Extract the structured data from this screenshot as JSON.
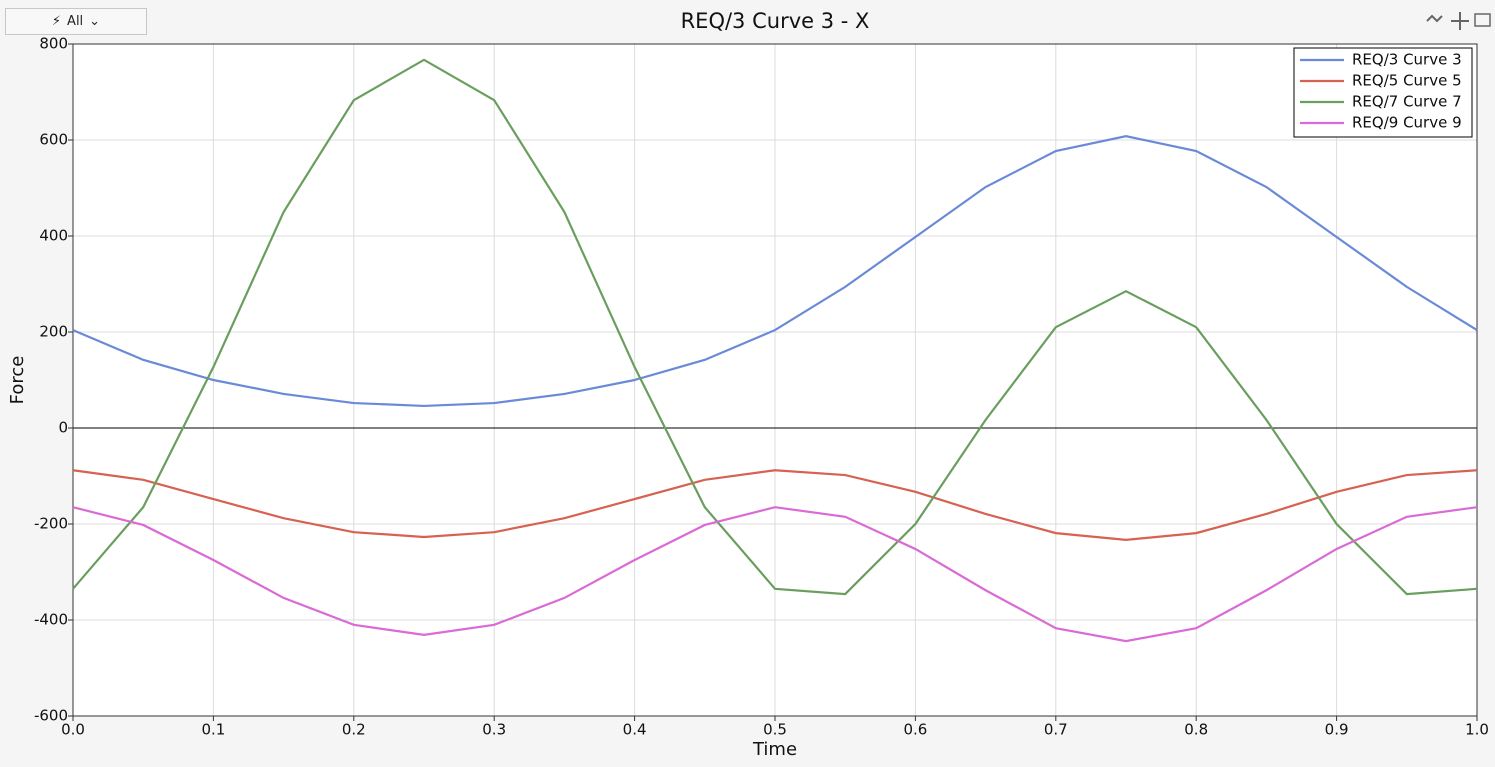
{
  "toolbar": {
    "filter_label": "All"
  },
  "chart_data": {
    "type": "line",
    "title": "REQ/3 Curve 3 - X",
    "xlabel": "Time",
    "ylabel": "Force",
    "x": [
      0,
      0.05,
      0.1,
      0.15,
      0.2,
      0.25,
      0.3,
      0.35,
      0.4,
      0.45,
      0.5,
      0.55,
      0.6,
      0.65,
      0.7,
      0.75,
      0.8,
      0.85,
      0.9,
      0.95,
      1
    ],
    "series": [
      {
        "name": "REQ/3 Curve 3",
        "color": "#6a8ad8",
        "values": [
          204,
          142,
          100,
          71,
          52,
          46,
          52,
          71,
          100,
          142,
          204,
          294,
          398,
          502,
          577,
          608,
          577,
          502,
          398,
          294,
          204
        ]
      },
      {
        "name": "REQ/5 Curve 5",
        "color": "#d66252",
        "values": [
          -88,
          -108,
          -148,
          -188,
          -217,
          -227,
          -217,
          -188,
          -148,
          -108,
          -88,
          -98,
          -133,
          -179,
          -219,
          -233,
          -219,
          -179,
          -133,
          -98,
          -88
        ]
      },
      {
        "name": "REQ/7 Curve 7",
        "color": "#6a9e5e",
        "values": [
          -335,
          -165,
          127,
          450,
          683,
          767,
          683,
          450,
          127,
          -165,
          -335,
          -346,
          -200,
          17,
          210,
          285,
          210,
          17,
          -200,
          -346,
          -335
        ]
      },
      {
        "name": "REQ/9 Curve 9",
        "color": "#d96ad6",
        "values": [
          -165,
          -202,
          -275,
          -354,
          -410,
          -431,
          -410,
          -354,
          -275,
          -202,
          -165,
          -185,
          -252,
          -338,
          -417,
          -444,
          -417,
          -338,
          -252,
          -185,
          -165
        ]
      }
    ],
    "xlim": [
      0,
      1
    ],
    "xticks": [
      {
        "value": 0,
        "label": "0.0"
      },
      0.1,
      0.2,
      0.3,
      0.4,
      0.5,
      0.6,
      0.7,
      0.8,
      0.9,
      {
        "value": 1,
        "label": "1.0"
      }
    ],
    "ylim": [
      -600,
      800
    ],
    "yticks": [
      -600,
      -400,
      -200,
      0,
      200,
      400,
      600,
      800
    ],
    "grid": true,
    "legend": "upper right"
  }
}
